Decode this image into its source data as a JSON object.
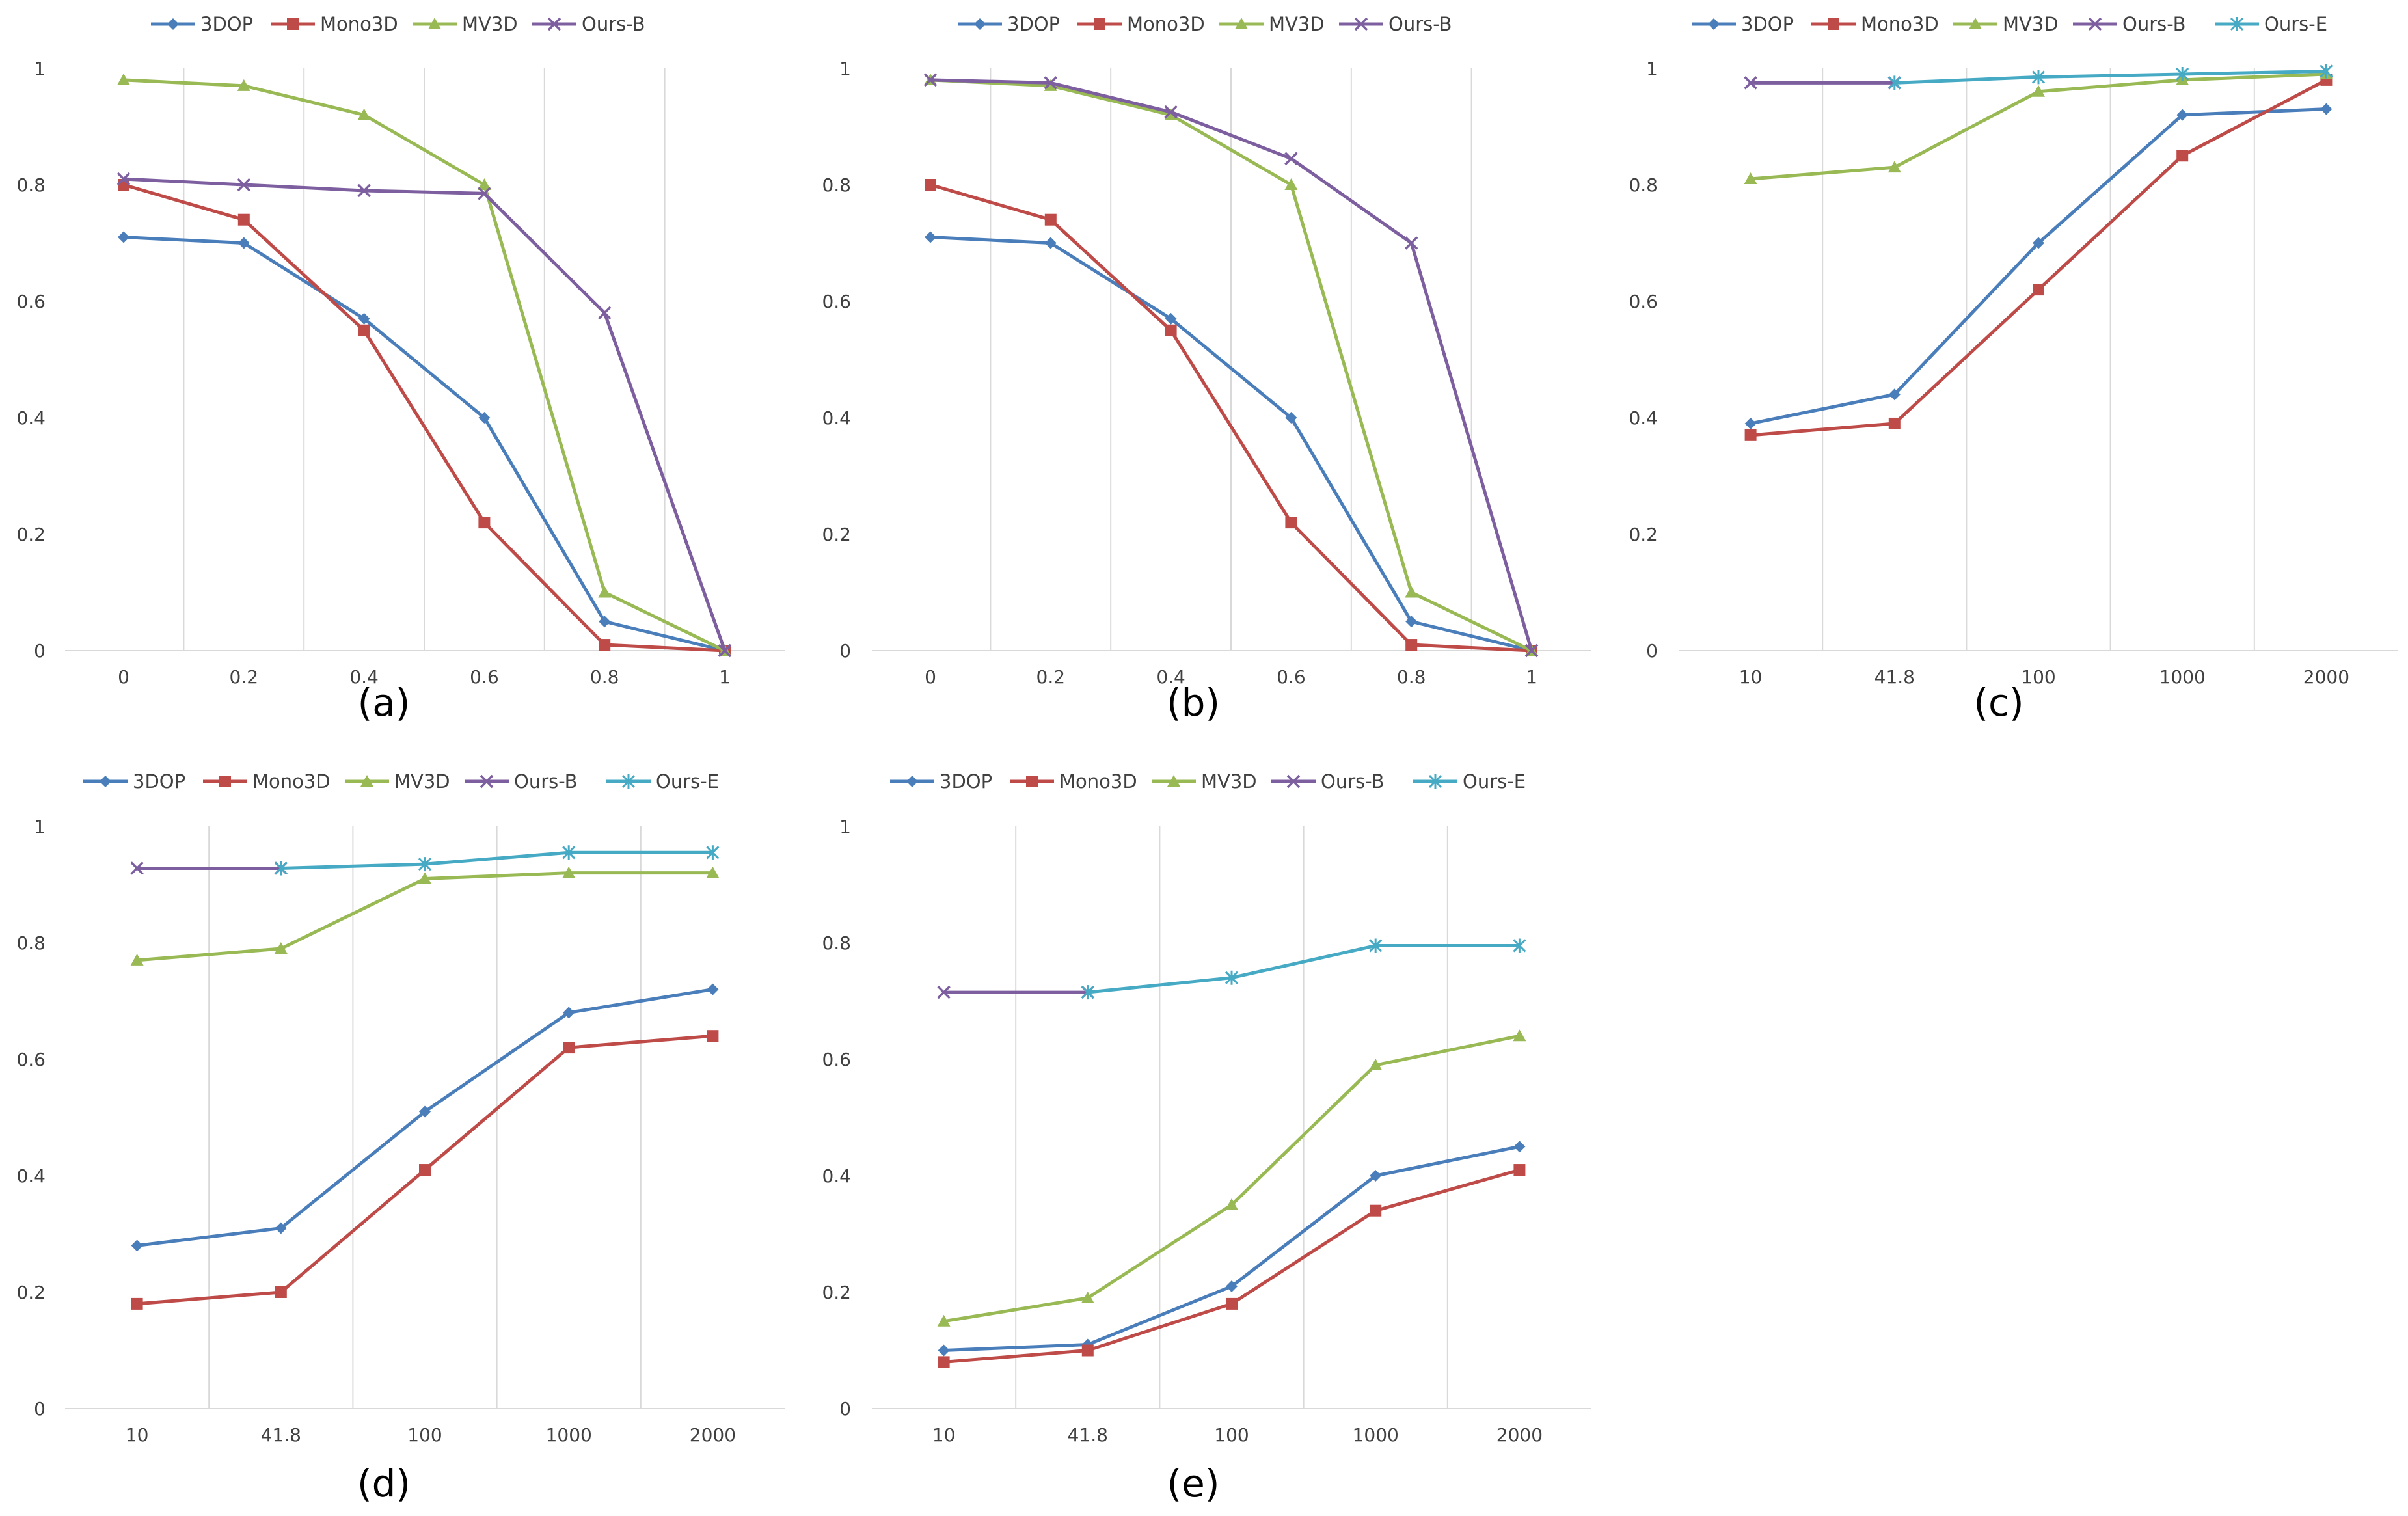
{
  "series_styles": {
    "3DOP": {
      "color": "#4a7ebb",
      "marker": "diamond"
    },
    "Mono3D": {
      "color": "#be4b48",
      "marker": "square"
    },
    "MV3D": {
      "color": "#98b954",
      "marker": "triangle"
    },
    "Ours-B": {
      "color": "#7d5fa0",
      "marker": "x"
    },
    "Ours-E": {
      "color": "#46aac5",
      "marker": "star"
    }
  },
  "chart_data": [
    {
      "id": "a",
      "caption": "(a)",
      "type": "line",
      "categories": [
        "0",
        "0.2",
        "0.4",
        "0.6",
        "0.8",
        "1"
      ],
      "ylim": [
        0,
        1
      ],
      "yticks": [
        "0",
        "0.2",
        "0.4",
        "0.6",
        "0.8",
        "1"
      ],
      "legend": [
        "3DOP",
        "Mono3D",
        "MV3D",
        "Ours-B"
      ],
      "series": [
        {
          "name": "3DOP",
          "values": [
            0.71,
            0.7,
            0.57,
            0.4,
            0.05,
            0.0
          ]
        },
        {
          "name": "Mono3D",
          "values": [
            0.8,
            0.74,
            0.55,
            0.22,
            0.01,
            0.0
          ]
        },
        {
          "name": "MV3D",
          "values": [
            0.98,
            0.97,
            0.92,
            0.8,
            0.1,
            0.0
          ]
        },
        {
          "name": "Ours-B",
          "values": [
            0.81,
            0.8,
            0.79,
            0.785,
            0.58,
            0.0
          ]
        }
      ]
    },
    {
      "id": "b",
      "caption": "(b)",
      "type": "line",
      "categories": [
        "0",
        "0.2",
        "0.4",
        "0.6",
        "0.8",
        "1"
      ],
      "ylim": [
        0,
        1
      ],
      "yticks": [
        "0",
        "0.2",
        "0.4",
        "0.6",
        "0.8",
        "1"
      ],
      "legend": [
        "3DOP",
        "Mono3D",
        "MV3D",
        "Ours-B"
      ],
      "series": [
        {
          "name": "3DOP",
          "values": [
            0.71,
            0.7,
            0.57,
            0.4,
            0.05,
            0.0
          ]
        },
        {
          "name": "Mono3D",
          "values": [
            0.8,
            0.74,
            0.55,
            0.22,
            0.01,
            0.0
          ]
        },
        {
          "name": "MV3D",
          "values": [
            0.98,
            0.97,
            0.92,
            0.8,
            0.1,
            0.0
          ]
        },
        {
          "name": "Ours-B",
          "values": [
            0.98,
            0.975,
            0.925,
            0.845,
            0.7,
            0.0
          ]
        }
      ]
    },
    {
      "id": "c",
      "caption": "(c)",
      "type": "line",
      "categories": [
        "10",
        "41.8",
        "100",
        "1000",
        "2000"
      ],
      "ylim": [
        0,
        1
      ],
      "yticks": [
        "0",
        "0.2",
        "0.4",
        "0.6",
        "0.8",
        "1"
      ],
      "legend": [
        "3DOP",
        "Mono3D",
        "MV3D",
        "Ours-B",
        "Ours-E"
      ],
      "series": [
        {
          "name": "3DOP",
          "values": [
            0.39,
            0.44,
            0.7,
            0.92,
            0.93
          ]
        },
        {
          "name": "Mono3D",
          "values": [
            0.37,
            0.39,
            0.62,
            0.85,
            0.98
          ]
        },
        {
          "name": "MV3D",
          "values": [
            0.81,
            0.83,
            0.96,
            0.98,
            0.99
          ]
        },
        {
          "name": "Ours-B",
          "values": [
            0.975,
            0.975,
            null,
            null,
            null
          ]
        },
        {
          "name": "Ours-E",
          "values": [
            null,
            0.975,
            0.985,
            0.99,
            0.995
          ]
        }
      ]
    },
    {
      "id": "d",
      "caption": "(d)",
      "type": "line",
      "categories": [
        "10",
        "41.8",
        "100",
        "1000",
        "2000"
      ],
      "ylim": [
        0,
        1
      ],
      "yticks": [
        "0",
        "0.2",
        "0.4",
        "0.6",
        "0.8",
        "1"
      ],
      "legend": [
        "3DOP",
        "Mono3D",
        "MV3D",
        "Ours-B",
        "Ours-E"
      ],
      "series": [
        {
          "name": "3DOP",
          "values": [
            0.28,
            0.31,
            0.51,
            0.68,
            0.72
          ]
        },
        {
          "name": "Mono3D",
          "values": [
            0.18,
            0.2,
            0.41,
            0.62,
            0.64
          ]
        },
        {
          "name": "MV3D",
          "values": [
            0.77,
            0.79,
            0.91,
            0.92,
            0.92
          ]
        },
        {
          "name": "Ours-B",
          "values": [
            0.928,
            0.928,
            null,
            null,
            null
          ]
        },
        {
          "name": "Ours-E",
          "values": [
            null,
            0.928,
            0.935,
            0.955,
            0.955
          ]
        }
      ]
    },
    {
      "id": "e",
      "caption": "(e)",
      "type": "line",
      "categories": [
        "10",
        "41.8",
        "100",
        "1000",
        "2000"
      ],
      "ylim": [
        0,
        1
      ],
      "yticks": [
        "0",
        "0.2",
        "0.4",
        "0.6",
        "0.8",
        "1"
      ],
      "legend": [
        "3DOP",
        "Mono3D",
        "MV3D",
        "Ours-B",
        "Ours-E"
      ],
      "series": [
        {
          "name": "3DOP",
          "values": [
            0.1,
            0.11,
            0.21,
            0.4,
            0.45
          ]
        },
        {
          "name": "Mono3D",
          "values": [
            0.08,
            0.1,
            0.18,
            0.34,
            0.41
          ]
        },
        {
          "name": "MV3D",
          "values": [
            0.15,
            0.19,
            0.35,
            0.59,
            0.64
          ]
        },
        {
          "name": "Ours-B",
          "values": [
            0.715,
            0.715,
            null,
            null,
            null
          ]
        },
        {
          "name": "Ours-E",
          "values": [
            null,
            0.715,
            0.74,
            0.795,
            0.795
          ]
        }
      ]
    }
  ]
}
